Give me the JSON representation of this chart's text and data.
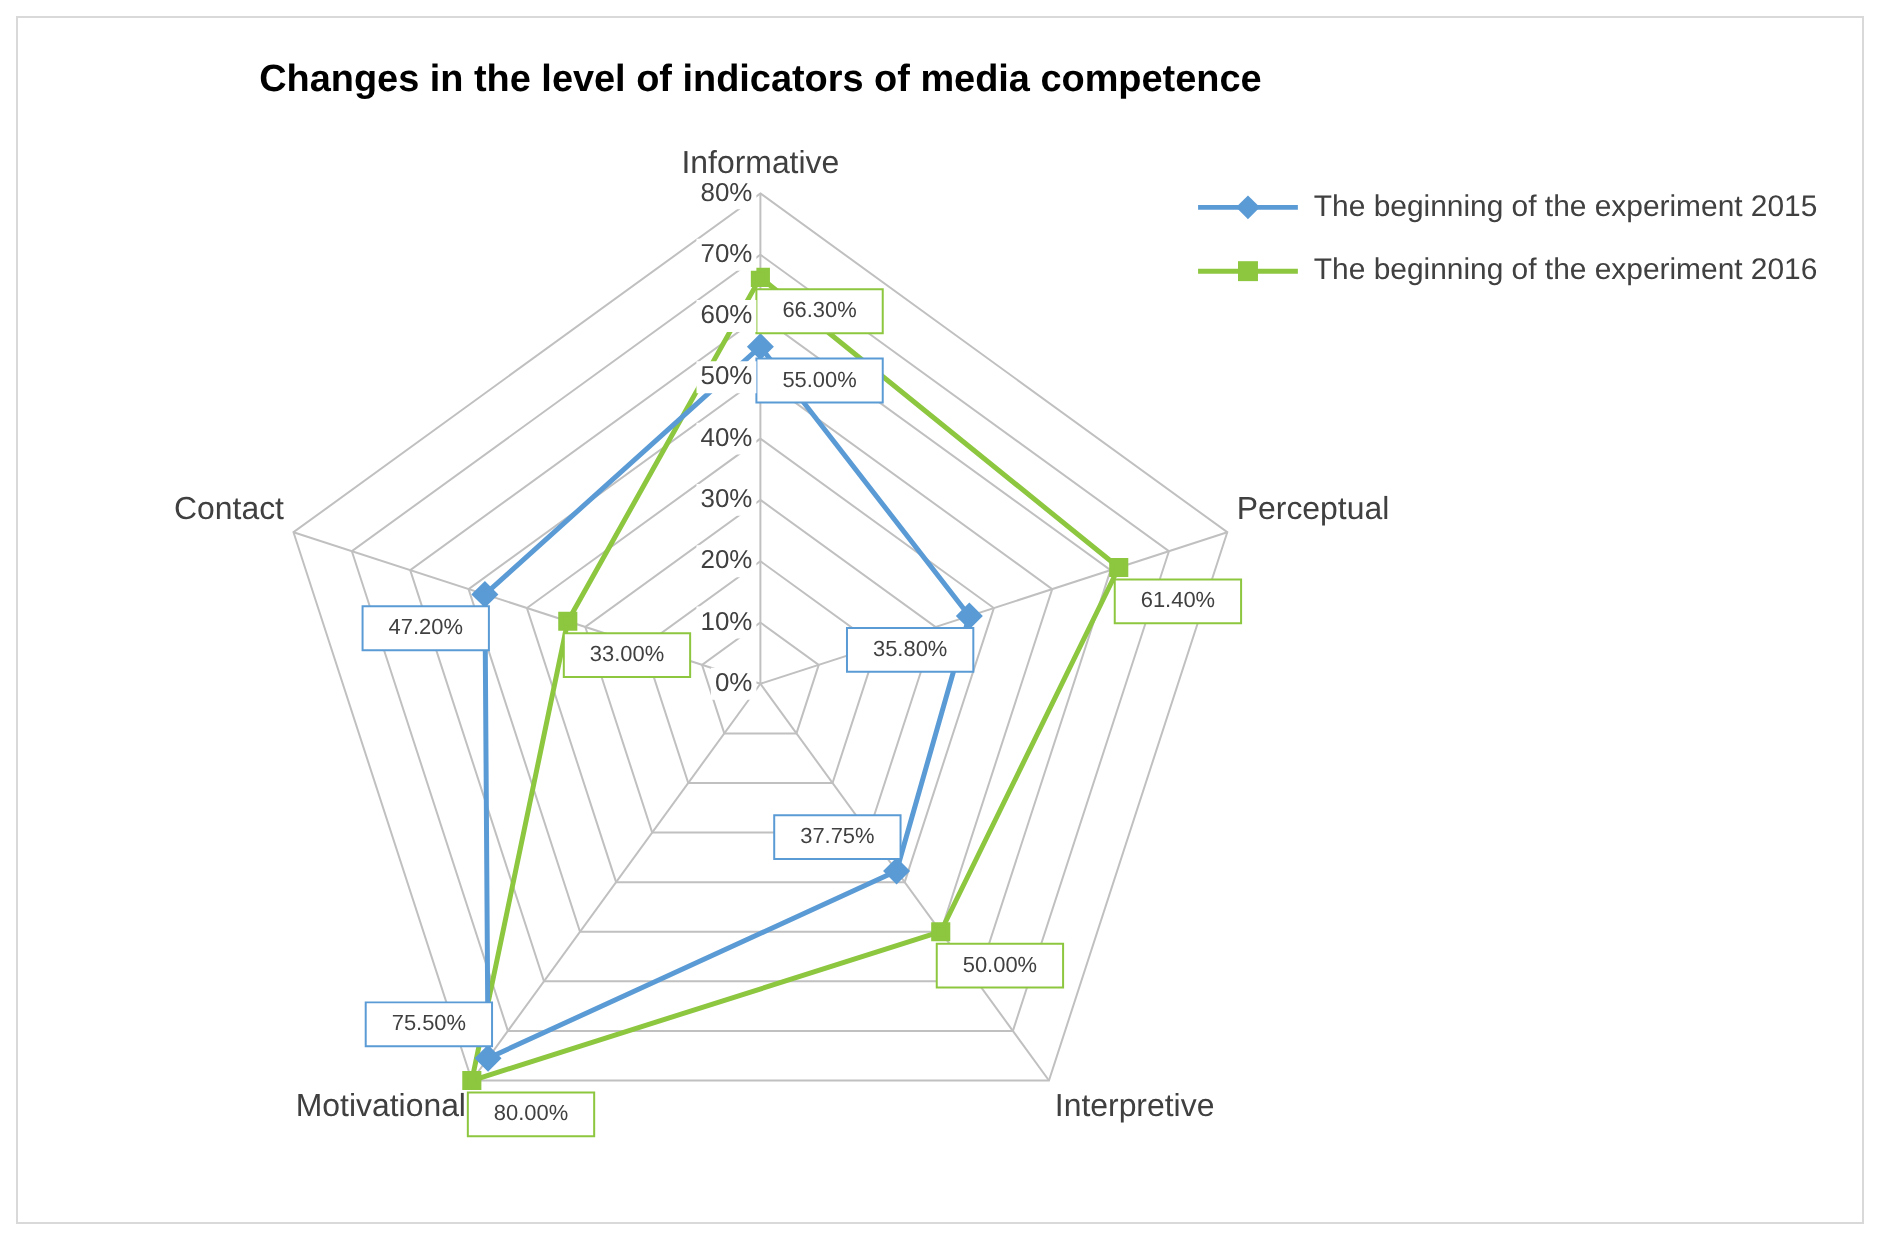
{
  "chart_data": {
    "type": "radar",
    "title": "Changes in the level of indicators of media competence",
    "categories": [
      "Informative",
      "Perceptual",
      "Interpretive",
      "Motivational",
      "Contact"
    ],
    "ylim": [
      0,
      80
    ],
    "yticks": [
      {
        "value": 0,
        "label": "0%"
      },
      {
        "value": 10,
        "label": "10%"
      },
      {
        "value": 20,
        "label": "20%"
      },
      {
        "value": 30,
        "label": "30%"
      },
      {
        "value": 40,
        "label": "40%"
      },
      {
        "value": 50,
        "label": "50%"
      },
      {
        "value": 60,
        "label": "60%"
      },
      {
        "value": 70,
        "label": "70%"
      },
      {
        "value": 80,
        "label": "80%"
      }
    ],
    "grid": true,
    "legend": "top right",
    "series": [
      {
        "name": "The beginning of the experiment 2015",
        "color": "#5b9bd5",
        "marker": "diamond",
        "values": [
          55,
          35.8,
          37.75,
          75.5,
          47.2
        ],
        "value_labels": [
          "55.00%",
          "35.80%",
          "37.75%",
          "75.50%",
          "47.20%"
        ]
      },
      {
        "name": "The beginning of the experiment 2016",
        "color": "#8dc63f",
        "marker": "square",
        "values": [
          66.3,
          61.4,
          50,
          80,
          33
        ],
        "value_labels": [
          "66.30%",
          "61.40%",
          "50.00%",
          "80.00%",
          "33.00%"
        ]
      }
    ]
  }
}
